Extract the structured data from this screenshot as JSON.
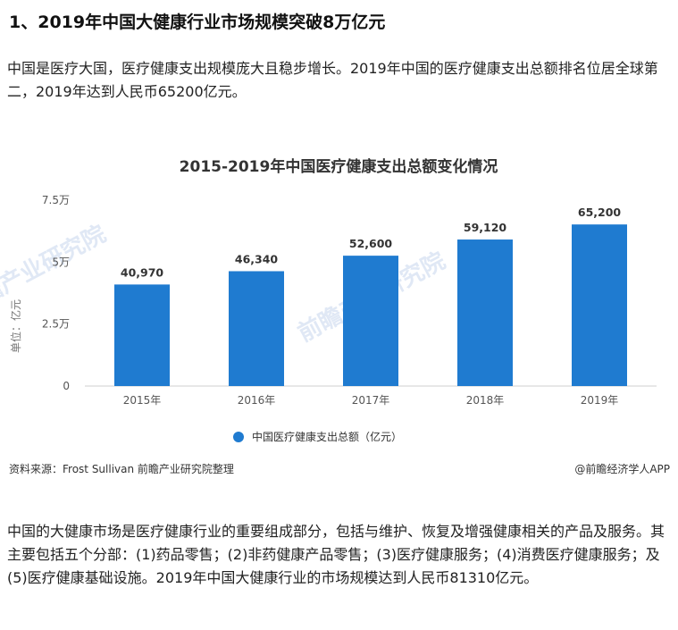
{
  "article": {
    "heading": "1、2019年中国大健康行业市场规模突破8万亿元",
    "paragraph1": "中国是医疗大国，医疗健康支出规模庞大且稳步增长。2019年中国的医疗健康支出总额排名位居全球第二，2019年达到人民币65200亿元。",
    "paragraph2": "中国的大健康市场是医疗健康行业的重要组成部分，包括与维护、恢复及增强健康相关的产品及服务。其主要包括五个分部：(1)药品零售；(2)非药健康产品零售；(3)医疗健康服务；(4)消费医疗健康服务；及(5)医疗健康基础设施。2019年中国大健康行业的市场规模达到人民币81310亿元。"
  },
  "chart_data": {
    "type": "bar",
    "title": "2015-2019年中国医疗健康支出总额变化情况",
    "categories": [
      "2015年",
      "2016年",
      "2017年",
      "2018年",
      "2019年"
    ],
    "series": [
      {
        "name": "中国医疗健康支出总额（亿元）",
        "values": [
          40970,
          46340,
          52600,
          59120,
          65200
        ]
      }
    ],
    "value_labels": [
      "40,970",
      "46,340",
      "52,600",
      "59,120",
      "65,200"
    ],
    "ylabel": "单位：亿元",
    "ylim": [
      0,
      75000
    ],
    "yticks": [
      0,
      25000,
      50000,
      75000
    ],
    "ytick_labels": [
      "0",
      "2.5万",
      "5万",
      "7.5万"
    ],
    "grid": false,
    "legend_position": "bottom",
    "bar_color": "#1f7bd0",
    "source": "资料来源：Frost Sullivan 前瞻产业研究院整理",
    "credit": "@前瞻经济学人APP",
    "watermark": "前瞻产业研究院"
  }
}
